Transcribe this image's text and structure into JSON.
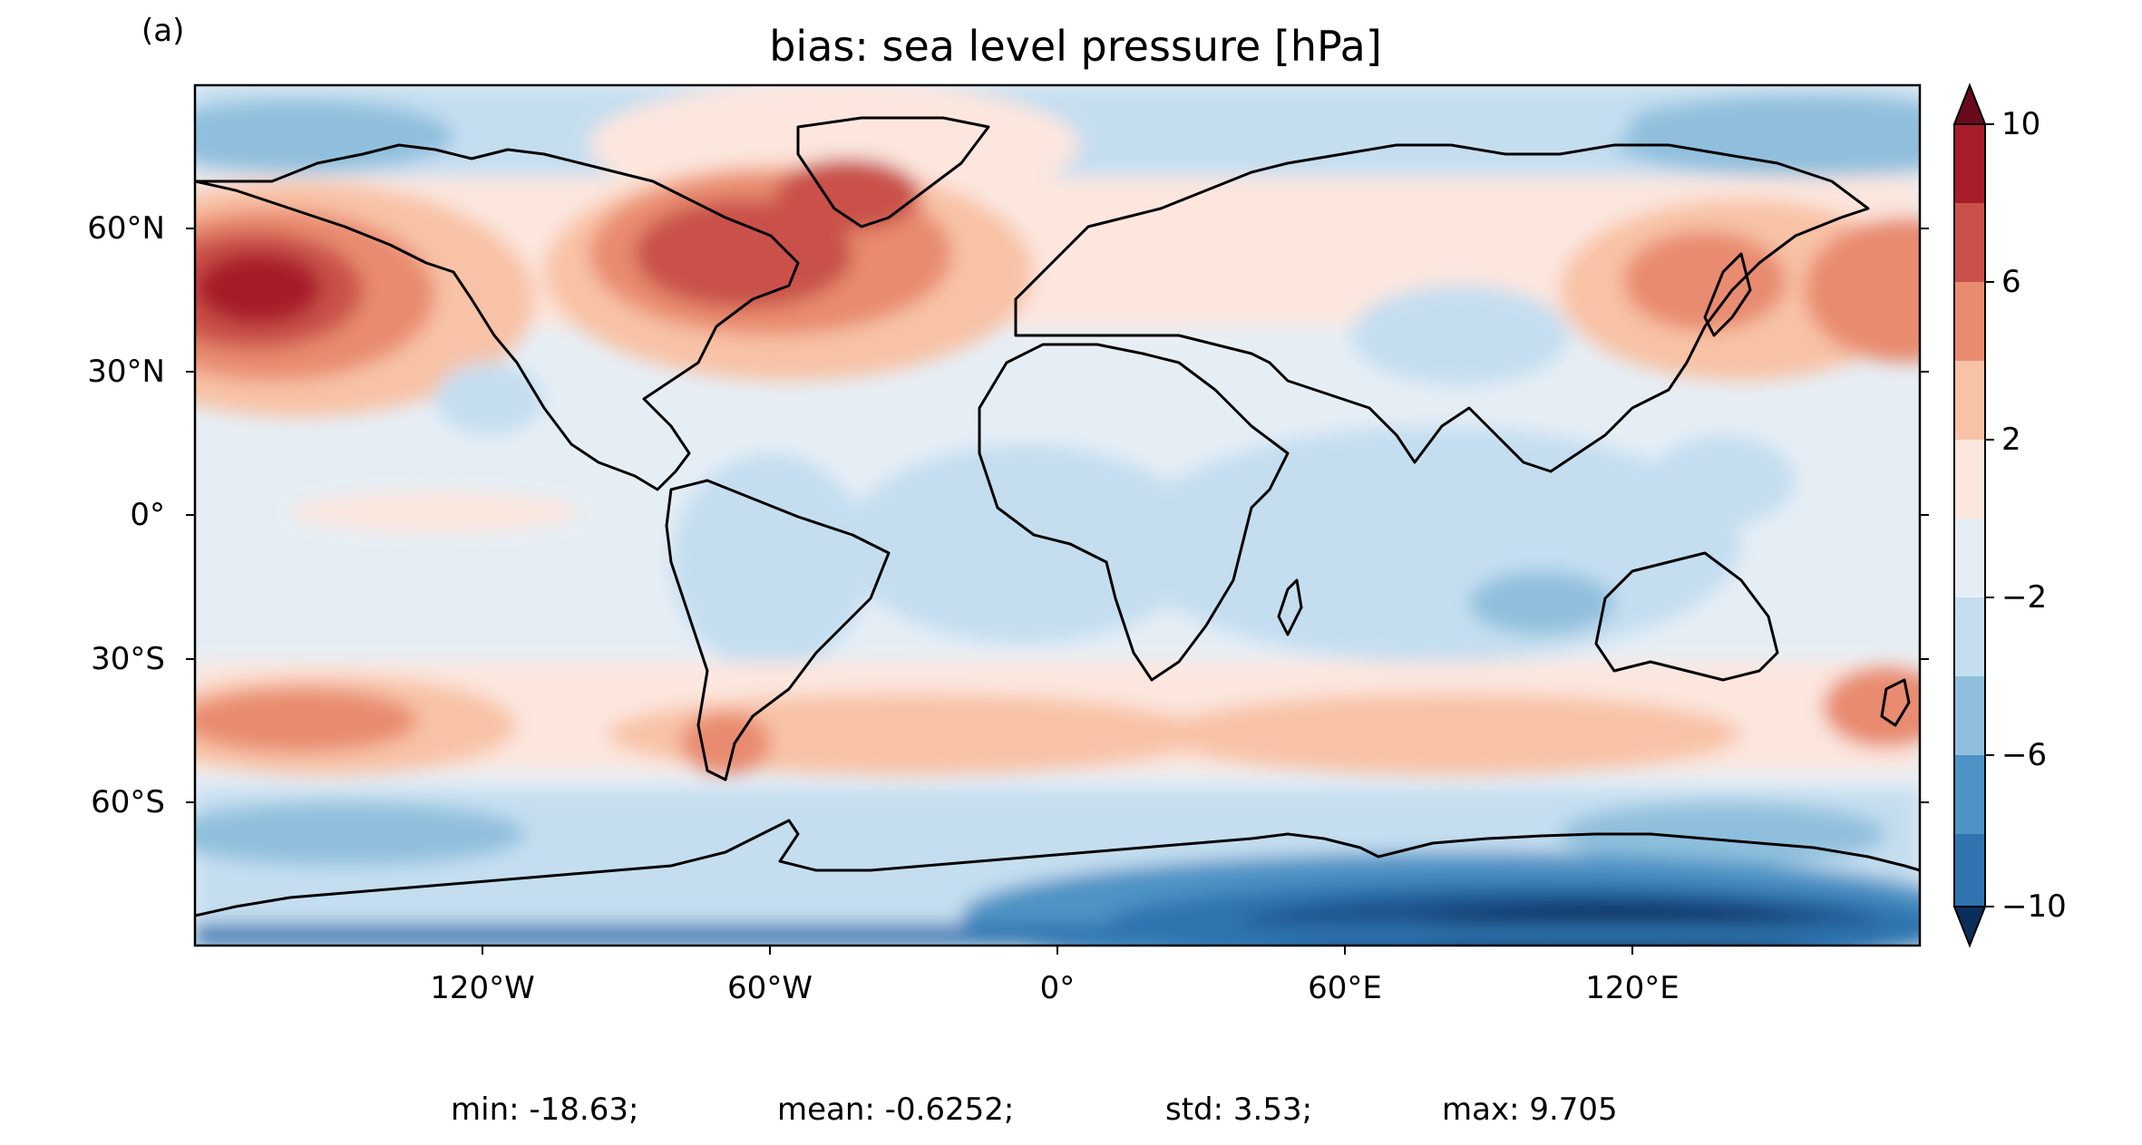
{
  "panel_label": "(a)",
  "title": "bias: sea level pressure [hPa]",
  "lat_ticks": [
    {
      "label": "60°N",
      "lat": 60
    },
    {
      "label": "30°N",
      "lat": 30
    },
    {
      "label": "0°",
      "lat": 0
    },
    {
      "label": "30°S",
      "lat": -30
    },
    {
      "label": "60°S",
      "lat": -60
    }
  ],
  "lon_ticks": [
    {
      "label": "120°W",
      "lon": -120
    },
    {
      "label": "60°W",
      "lon": -60
    },
    {
      "label": "0°",
      "lon": 0
    },
    {
      "label": "60°E",
      "lon": 60
    },
    {
      "label": "120°E",
      "lon": 120
    }
  ],
  "colorbar": {
    "levels": [
      -10,
      -8,
      -6,
      -4,
      -2,
      2,
      4,
      6,
      8,
      10
    ],
    "tick_labels": [
      "10",
      "6",
      "2",
      "−2",
      "−6",
      "−10"
    ],
    "tick_values": [
      10,
      6,
      2,
      -2,
      -6,
      -10
    ],
    "colors_low_to_high": [
      "#1a4f8a",
      "#2f74b0",
      "#4d93c5",
      "#8fbfdd",
      "#c4def0",
      "#e6eef5",
      "#fce6de",
      "#f8c2a6",
      "#e88b6f",
      "#c9514a",
      "#a81d2a"
    ],
    "under_color": "#0b2e5c",
    "over_color": "#6a0b1d",
    "extend": "both"
  },
  "stats": {
    "min": "min: -18.63;",
    "mean": "mean: -0.6252;",
    "std": "std: 3.53;",
    "max": "max: 9.705"
  },
  "chart_data": {
    "type": "heatmap",
    "title": "bias: sea level pressure [hPa]",
    "xlim": [
      -180,
      180
    ],
    "ylim": [
      -90,
      90
    ],
    "colorbar_range": [
      -10,
      10
    ],
    "regions": [
      {
        "name": "north-pacific-high",
        "lon": -165,
        "lat": 47,
        "value": 9
      },
      {
        "name": "north-atlantic-high",
        "lon": -55,
        "lat": 47,
        "value": 7
      },
      {
        "name": "southern-ocean-band",
        "lon": 0,
        "lat": -45,
        "value": 3
      },
      {
        "name": "antarctica-low",
        "lon": 110,
        "lat": -82,
        "value": -12
      },
      {
        "name": "arctic-pacific-low",
        "lon": -150,
        "lat": 82,
        "value": -4
      },
      {
        "name": "indian-ocean-low",
        "lon": 105,
        "lat": -20,
        "value": -4
      }
    ]
  }
}
